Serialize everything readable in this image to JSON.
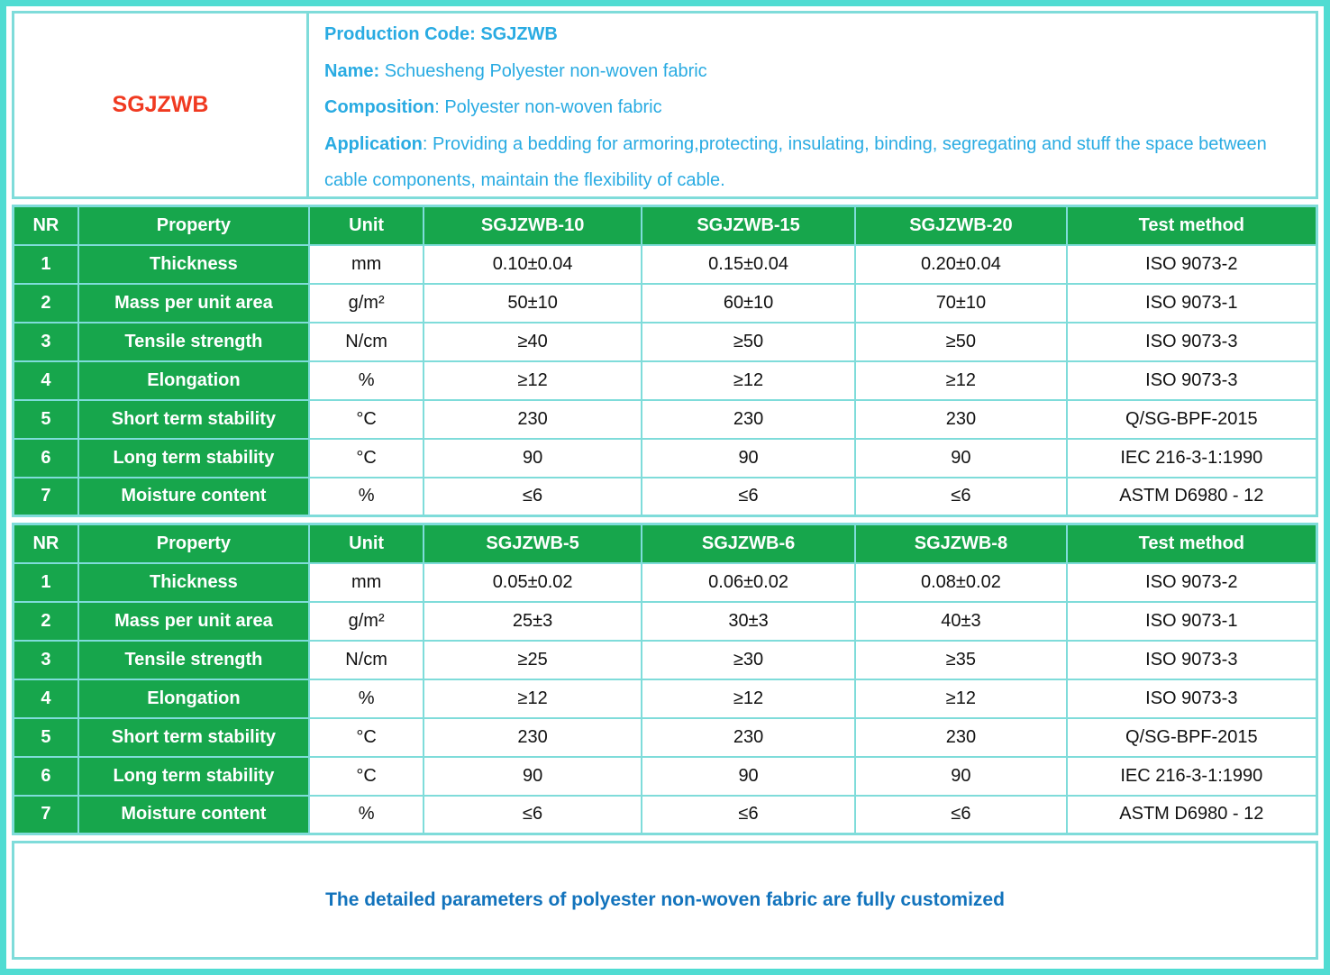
{
  "theme": {
    "frame_color": "#50DCD2",
    "grid_line_color": "#7FDCDA",
    "header_green": "#17A64C",
    "code_red": "#F03A21",
    "info_blue": "#29ABE2",
    "note_blue": "#1273BC"
  },
  "header": {
    "product_code": "SGJZWB",
    "lines": [
      {
        "label": "Production Code: SGJZWB",
        "value": ""
      },
      {
        "label": "Name:",
        "value": " Schuesheng Polyester non-woven fabric"
      },
      {
        "label": "Composition",
        "value": ": Polyester non-woven fabric"
      },
      {
        "label": "Application",
        "value": ": Providing a bedding for armoring,protecting, insulating, binding, segregating and stuff the space between cable components, maintain the flexibility of cable."
      }
    ]
  },
  "tables": [
    {
      "columns": [
        "NR",
        "Property",
        "Unit",
        "SGJZWB-10",
        "SGJZWB-15",
        "SGJZWB-20",
        "Test method"
      ],
      "rows": [
        [
          "1",
          "Thickness",
          "mm",
          "0.10±0.04",
          "0.15±0.04",
          "0.20±0.04",
          "ISO 9073-2"
        ],
        [
          "2",
          "Mass per unit area",
          "g/m²",
          "50±10",
          "60±10",
          "70±10",
          "ISO 9073-1"
        ],
        [
          "3",
          "Tensile strength",
          "N/cm",
          "≥40",
          "≥50",
          "≥50",
          "ISO 9073-3"
        ],
        [
          "4",
          "Elongation",
          "%",
          "≥12",
          "≥12",
          "≥12",
          "ISO 9073-3"
        ],
        [
          "5",
          "Short term stability",
          "°C",
          "230",
          "230",
          "230",
          "Q/SG-BPF-2015"
        ],
        [
          "6",
          "Long term stability",
          "°C",
          "90",
          "90",
          "90",
          "IEC 216-3-1:1990"
        ],
        [
          "7",
          "Moisture content",
          "%",
          "≤6",
          "≤6",
          "≤6",
          "ASTM D6980 - 12"
        ]
      ]
    },
    {
      "columns": [
        "NR",
        "Property",
        "Unit",
        "SGJZWB-5",
        "SGJZWB-6",
        "SGJZWB-8",
        "Test method"
      ],
      "rows": [
        [
          "1",
          "Thickness",
          "mm",
          "0.05±0.02",
          "0.06±0.02",
          "0.08±0.02",
          "ISO 9073-2"
        ],
        [
          "2",
          "Mass per unit area",
          "g/m²",
          "25±3",
          "30±3",
          "40±3",
          "ISO 9073-1"
        ],
        [
          "3",
          "Tensile strength",
          "N/cm",
          "≥25",
          "≥30",
          "≥35",
          "ISO 9073-3"
        ],
        [
          "4",
          "Elongation",
          "%",
          "≥12",
          "≥12",
          "≥12",
          "ISO 9073-3"
        ],
        [
          "5",
          "Short term stability",
          "°C",
          "230",
          "230",
          "230",
          "Q/SG-BPF-2015"
        ],
        [
          "6",
          "Long term stability",
          "°C",
          "90",
          "90",
          "90",
          "IEC 216-3-1:1990"
        ],
        [
          "7",
          "Moisture content",
          "%",
          "≤6",
          "≤6",
          "≤6",
          "ASTM D6980 - 12"
        ]
      ]
    }
  ],
  "footer": {
    "note": "The detailed parameters of polyester non-woven fabric are fully customized"
  }
}
